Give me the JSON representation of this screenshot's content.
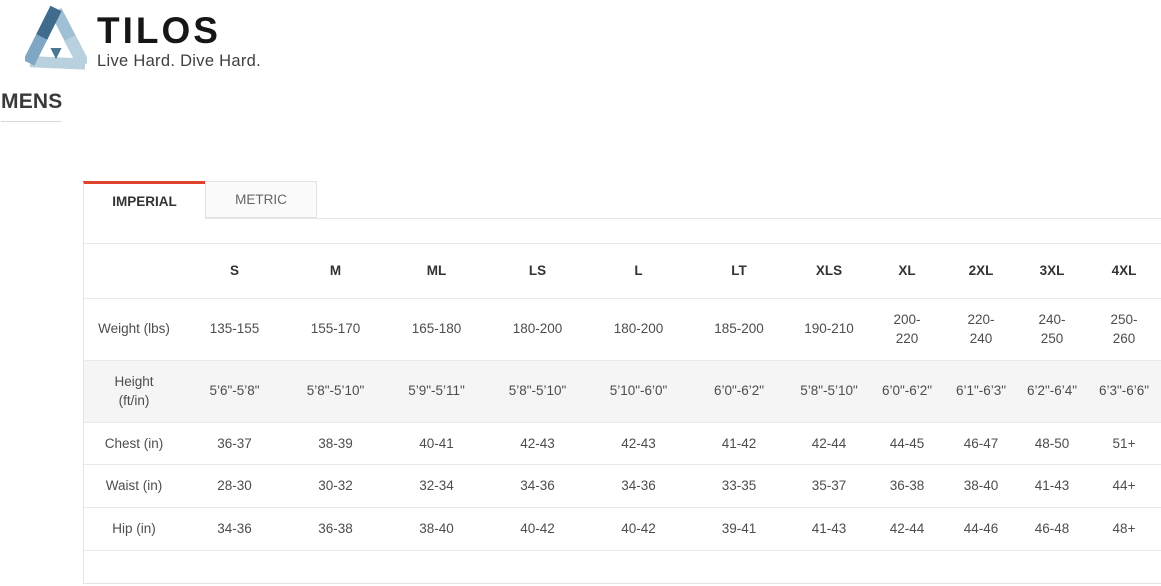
{
  "accent_color": "#e0432d",
  "brand": {
    "name": "TILOS",
    "tagline": "Live Hard. Dive Hard.",
    "logo_colors": {
      "dark": "#3f6b8c",
      "medium": "#7fa6c2",
      "light": "#9fbfd4",
      "lightest": "#b9d0de",
      "wedge": "#4c7896"
    }
  },
  "page_title": "MENS",
  "tabs": [
    {
      "label": "IMPERIAL",
      "active": true
    },
    {
      "label": "METRIC",
      "active": false
    }
  ],
  "size_chart": {
    "columns": [
      "S",
      "M",
      "ML",
      "LS",
      "L",
      "LT",
      "XLS",
      "XL",
      "2XL",
      "3XL",
      "4XL"
    ],
    "rows": [
      {
        "label": "Weight (lbs)",
        "values": [
          "135-155",
          "155-170",
          "165-180",
          "180-200",
          "180-200",
          "185-200",
          "190-210",
          "200-\n220",
          "220-\n240",
          "240-\n250",
          "250-\n260"
        ]
      },
      {
        "label": "Height\n(ft/in)",
        "values": [
          "5’6\"-5’8\"",
          "5’8\"-5’10\"",
          "5’9\"-5’11\"",
          "5’8\"-5’10\"",
          "5’10\"-6’0\"",
          "6’0\"-6’2\"",
          "5’8\"-5’10\"",
          "6’0\"-6’2\"",
          "6’1\"-6’3\"",
          "6’2\"-6’4\"",
          "6’3\"-6’6\""
        ]
      },
      {
        "label": "Chest (in)",
        "values": [
          "36-37",
          "38-39",
          "40-41",
          "42-43",
          "42-43",
          "41-42",
          "42-44",
          "44-45",
          "46-47",
          "48-50",
          "51+"
        ]
      },
      {
        "label": "Waist (in)",
        "values": [
          "28-30",
          "30-32",
          "32-34",
          "34-36",
          "34-36",
          "33-35",
          "35-37",
          "36-38",
          "38-40",
          "41-43",
          "44+"
        ]
      },
      {
        "label": "Hip (in)",
        "values": [
          "34-36",
          "36-38",
          "38-40",
          "40-42",
          "40-42",
          "39-41",
          "41-43",
          "42-44",
          "44-46",
          "46-48",
          "48+"
        ]
      }
    ]
  }
}
